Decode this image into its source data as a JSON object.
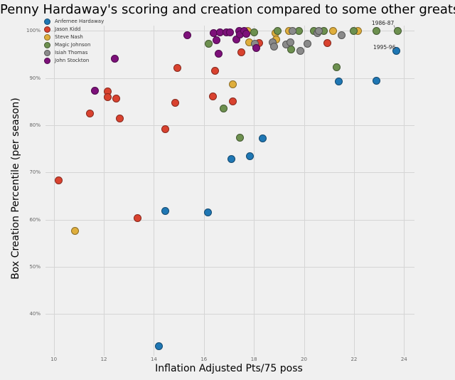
{
  "colors": {
    "background": "#f0f0f0",
    "gridline": "#d5d5d5",
    "tick_label": "#666666",
    "annotation": "#222222"
  },
  "chart_data": {
    "type": "scatter",
    "title": "Penny Hardaway's scoring and creation compared to some other greats",
    "xlabel": "Inflation Adjusted Pts/75 poss",
    "ylabel": "Box Creation Percentile (per season)",
    "xlim": [
      9.7,
      25.7
    ],
    "ylim": [
      31,
      101.5
    ],
    "x_ticks": [
      10,
      12,
      14,
      16,
      18,
      20,
      22,
      24
    ],
    "y_ticks": [
      40,
      50,
      60,
      70,
      80,
      90,
      100
    ],
    "y_tick_suffix": "%",
    "grid": true,
    "legend_position": "upper-left",
    "series": [
      {
        "name": "Anfernee Hardaway",
        "color": "#1f77b4",
        "points": [
          [
            14.2,
            33.2
          ],
          [
            14.45,
            61.8
          ],
          [
            16.15,
            61.5
          ],
          [
            17.1,
            72.9
          ],
          [
            17.85,
            73.5
          ],
          [
            18.35,
            77.2
          ],
          [
            21.4,
            89.3
          ],
          [
            22.9,
            89.4
          ],
          [
            23.7,
            95.7
          ]
        ]
      },
      {
        "name": "Jason Kidd",
        "color": "#d9422f",
        "points": [
          [
            10.2,
            68.3
          ],
          [
            11.45,
            82.5
          ],
          [
            12.15,
            87.1
          ],
          [
            12.15,
            86.0
          ],
          [
            12.5,
            85.6
          ],
          [
            12.65,
            81.4
          ],
          [
            13.35,
            60.4
          ],
          [
            14.45,
            79.2
          ],
          [
            14.85,
            84.8
          ],
          [
            14.95,
            92.1
          ],
          [
            16.35,
            86.1
          ],
          [
            16.45,
            91.5
          ],
          [
            17.15,
            85.0
          ],
          [
            17.5,
            95.5
          ],
          [
            18.2,
            97.4
          ],
          [
            20.95,
            97.4
          ]
        ]
      },
      {
        "name": "Steve Nash",
        "color": "#dfae3c",
        "points": [
          [
            10.85,
            57.6
          ],
          [
            17.15,
            88.6
          ],
          [
            17.75,
            100
          ],
          [
            17.8,
            97.6
          ],
          [
            18.85,
            99.5
          ],
          [
            18.9,
            98.1
          ],
          [
            19.4,
            100
          ],
          [
            21.15,
            100
          ],
          [
            22.15,
            100
          ]
        ]
      },
      {
        "name": "Magic Johnson",
        "color": "#6d904f",
        "points": [
          [
            16.2,
            97.2
          ],
          [
            16.8,
            83.5
          ],
          [
            17.45,
            77.3
          ],
          [
            18.0,
            99.7
          ],
          [
            18.95,
            100
          ],
          [
            19.5,
            96.0
          ],
          [
            19.8,
            100
          ],
          [
            20.4,
            100
          ],
          [
            20.8,
            100
          ],
          [
            21.3,
            92.3
          ],
          [
            22.0,
            100
          ],
          [
            22.9,
            100
          ],
          [
            23.75,
            100
          ]
        ]
      },
      {
        "name": "Isiah Thomas",
        "color": "#8a8a8a",
        "points": [
          [
            18.05,
            97.3
          ],
          [
            18.75,
            97.6
          ],
          [
            18.8,
            96.7
          ],
          [
            19.3,
            97.1
          ],
          [
            19.45,
            97.5
          ],
          [
            19.55,
            100
          ],
          [
            19.85,
            95.8
          ],
          [
            20.15,
            97.3
          ],
          [
            20.55,
            99.5
          ],
          [
            20.6,
            100
          ],
          [
            21.5,
            99.0
          ]
        ]
      },
      {
        "name": "John Stockton",
        "color": "#7d107a",
        "points": [
          [
            11.65,
            87.3
          ],
          [
            12.45,
            94.1
          ],
          [
            15.35,
            99.0
          ],
          [
            16.4,
            99.5
          ],
          [
            16.5,
            98.0
          ],
          [
            16.6,
            95.1
          ],
          [
            16.65,
            99.7
          ],
          [
            16.9,
            99.6
          ],
          [
            17.05,
            99.6
          ],
          [
            17.3,
            98.1
          ],
          [
            17.4,
            100
          ],
          [
            17.45,
            99.2
          ],
          [
            17.6,
            100
          ],
          [
            17.7,
            99.3
          ],
          [
            18.1,
            96.3
          ]
        ]
      }
    ],
    "annotations": [
      {
        "text": "1986-87",
        "label_x": 22.71,
        "label_y": 101.5,
        "point_x": 23.75,
        "point_y": 100
      },
      {
        "text": "1995-96",
        "label_x": 22.77,
        "label_y": 96.5,
        "point_x": 23.7,
        "point_y": 95.7
      }
    ]
  }
}
